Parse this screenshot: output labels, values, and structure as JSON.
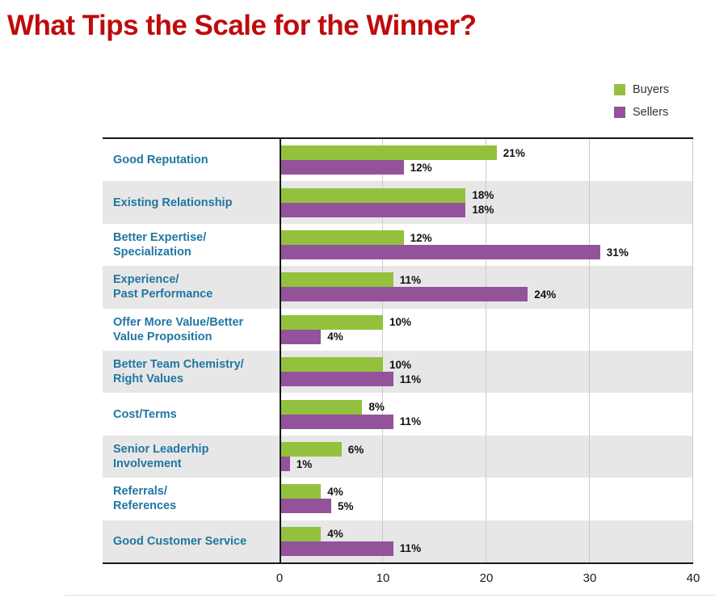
{
  "title": "What Tips the Scale for the Winner?",
  "legend": {
    "items": [
      {
        "label": "Buyers",
        "color": "#94c13d"
      },
      {
        "label": "Sellers",
        "color": "#93539b"
      }
    ]
  },
  "chart_data": {
    "type": "bar",
    "orientation": "horizontal",
    "title": "What Tips the Scale for the Winner?",
    "categories": [
      "Good Reputation",
      "Existing Relationship",
      "Better Expertise/\nSpecialization",
      "Experience/\nPast Performance",
      "Offer More Value/Better\nValue Proposition",
      "Better Team Chemistry/\nRight Values",
      "Cost/Terms",
      "Senior Leaderhip\nInvolvement",
      "Referrals/\nReferences",
      "Good Customer Service"
    ],
    "series": [
      {
        "name": "Buyers",
        "color": "#94c13d",
        "values": [
          21,
          18,
          12,
          11,
          10,
          10,
          8,
          6,
          4,
          4
        ]
      },
      {
        "name": "Sellers",
        "color": "#93539b",
        "values": [
          12,
          18,
          31,
          24,
          4,
          11,
          11,
          1,
          5,
          11
        ]
      }
    ],
    "value_suffix": "%",
    "xlim": [
      0,
      40
    ],
    "xticks": [
      0,
      10,
      20,
      30,
      40
    ],
    "xlabel": "",
    "ylabel": "",
    "grid": "vertical",
    "legend_position": "top-right",
    "row_banding": "alternating"
  },
  "style": {
    "title_color": "#bf0b0b",
    "category_label_color": "#2176a3",
    "row_alt_color": "#e7e7e7",
    "gridline_color": "#cbcbcb",
    "axis_color": "#1a1a1a",
    "value_label_color": "#111111"
  }
}
